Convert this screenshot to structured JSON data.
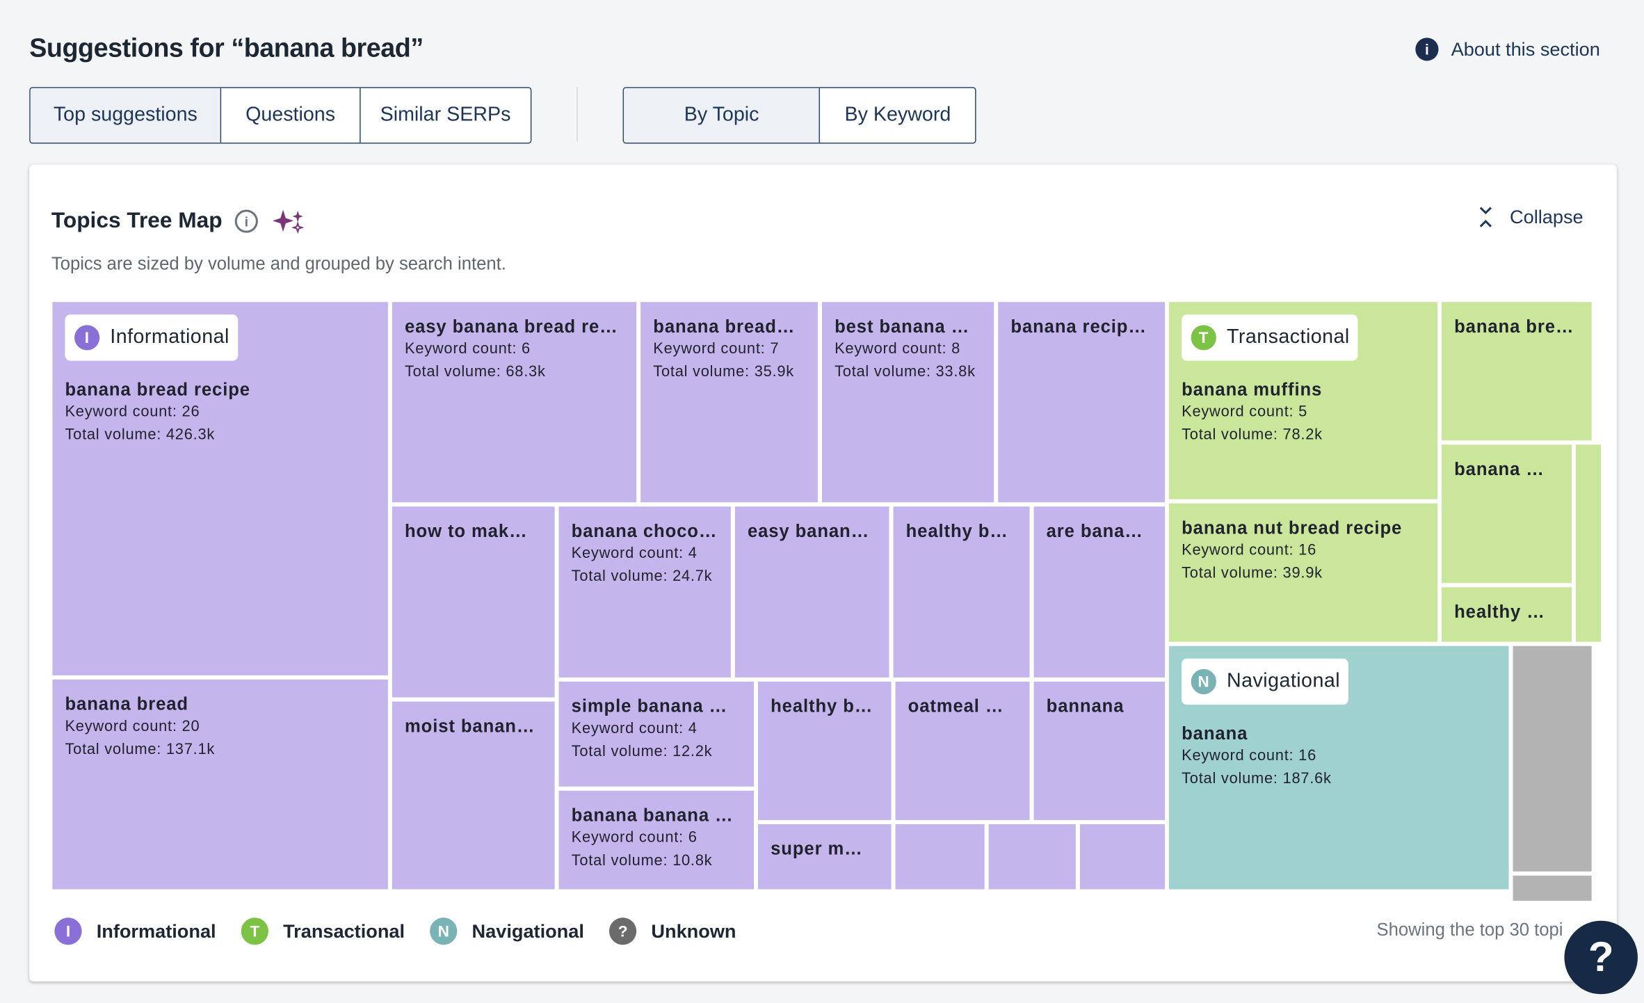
{
  "header": {
    "title": "Suggestions for “banana bread”",
    "about": "About this section"
  },
  "tabs": {
    "suggestion_types": [
      "Top suggestions",
      "Questions",
      "Similar SERPs"
    ],
    "grouping": [
      "By Topic",
      "By Keyword"
    ]
  },
  "card": {
    "title": "Topics Tree Map",
    "subtitle": "Topics are sized by volume and grouped by search intent.",
    "collapse": "Collapse",
    "footer_note": "Showing the top 30 topi"
  },
  "treemap": {
    "groups": [
      {
        "name": "Informational",
        "letter": "I",
        "tiles": [
          {
            "label": "banana bread recipe",
            "keyword_count": "Keyword count: 26",
            "total_volume": "Total volume: 426.3k"
          },
          {
            "label": "banana bread",
            "keyword_count": "Keyword count: 20",
            "total_volume": "Total volume: 137.1k"
          },
          {
            "label": "easy banana bread re…",
            "keyword_count": "Keyword count: 6",
            "total_volume": "Total volume: 68.3k"
          },
          {
            "label": "banana bread…",
            "keyword_count": "Keyword count: 7",
            "total_volume": "Total volume: 35.9k"
          },
          {
            "label": "best banana …",
            "keyword_count": "Keyword count: 8",
            "total_volume": "Total volume: 33.8k"
          },
          {
            "label": "banana recip…"
          },
          {
            "label": "how to mak…"
          },
          {
            "label": "moist banan…"
          },
          {
            "label": "banana choco…",
            "keyword_count": "Keyword count: 4",
            "total_volume": "Total volume: 24.7k"
          },
          {
            "label": "easy banan…"
          },
          {
            "label": "healthy b…"
          },
          {
            "label": "are bana…"
          },
          {
            "label": "simple banana …",
            "keyword_count": "Keyword count: 4",
            "total_volume": "Total volume: 12.2k"
          },
          {
            "label": "banana banana …",
            "keyword_count": "Keyword count: 6",
            "total_volume": "Total volume: 10.8k"
          },
          {
            "label": "healthy b…"
          },
          {
            "label": "oatmeal …"
          },
          {
            "label": "bannana"
          },
          {
            "label": "super m…"
          }
        ]
      },
      {
        "name": "Transactional",
        "letter": "T",
        "tiles": [
          {
            "label": "banana muffins",
            "keyword_count": "Keyword count: 5",
            "total_volume": "Total volume: 78.2k"
          },
          {
            "label": "banana nut bread recipe",
            "keyword_count": "Keyword count: 16",
            "total_volume": "Total volume: 39.9k"
          },
          {
            "label": "banana bre…"
          },
          {
            "label": "banana …"
          },
          {
            "label": "healthy …"
          }
        ]
      },
      {
        "name": "Navigational",
        "letter": "N",
        "tiles": [
          {
            "label": "banana",
            "keyword_count": "Keyword count: 16",
            "total_volume": "Total volume: 187.6k"
          }
        ]
      }
    ]
  },
  "legend": [
    {
      "letter": "I",
      "label": "Informational"
    },
    {
      "letter": "T",
      "label": "Transactional"
    },
    {
      "letter": "N",
      "label": "Navigational"
    },
    {
      "letter": "?",
      "label": "Unknown"
    }
  ],
  "help": "?"
}
